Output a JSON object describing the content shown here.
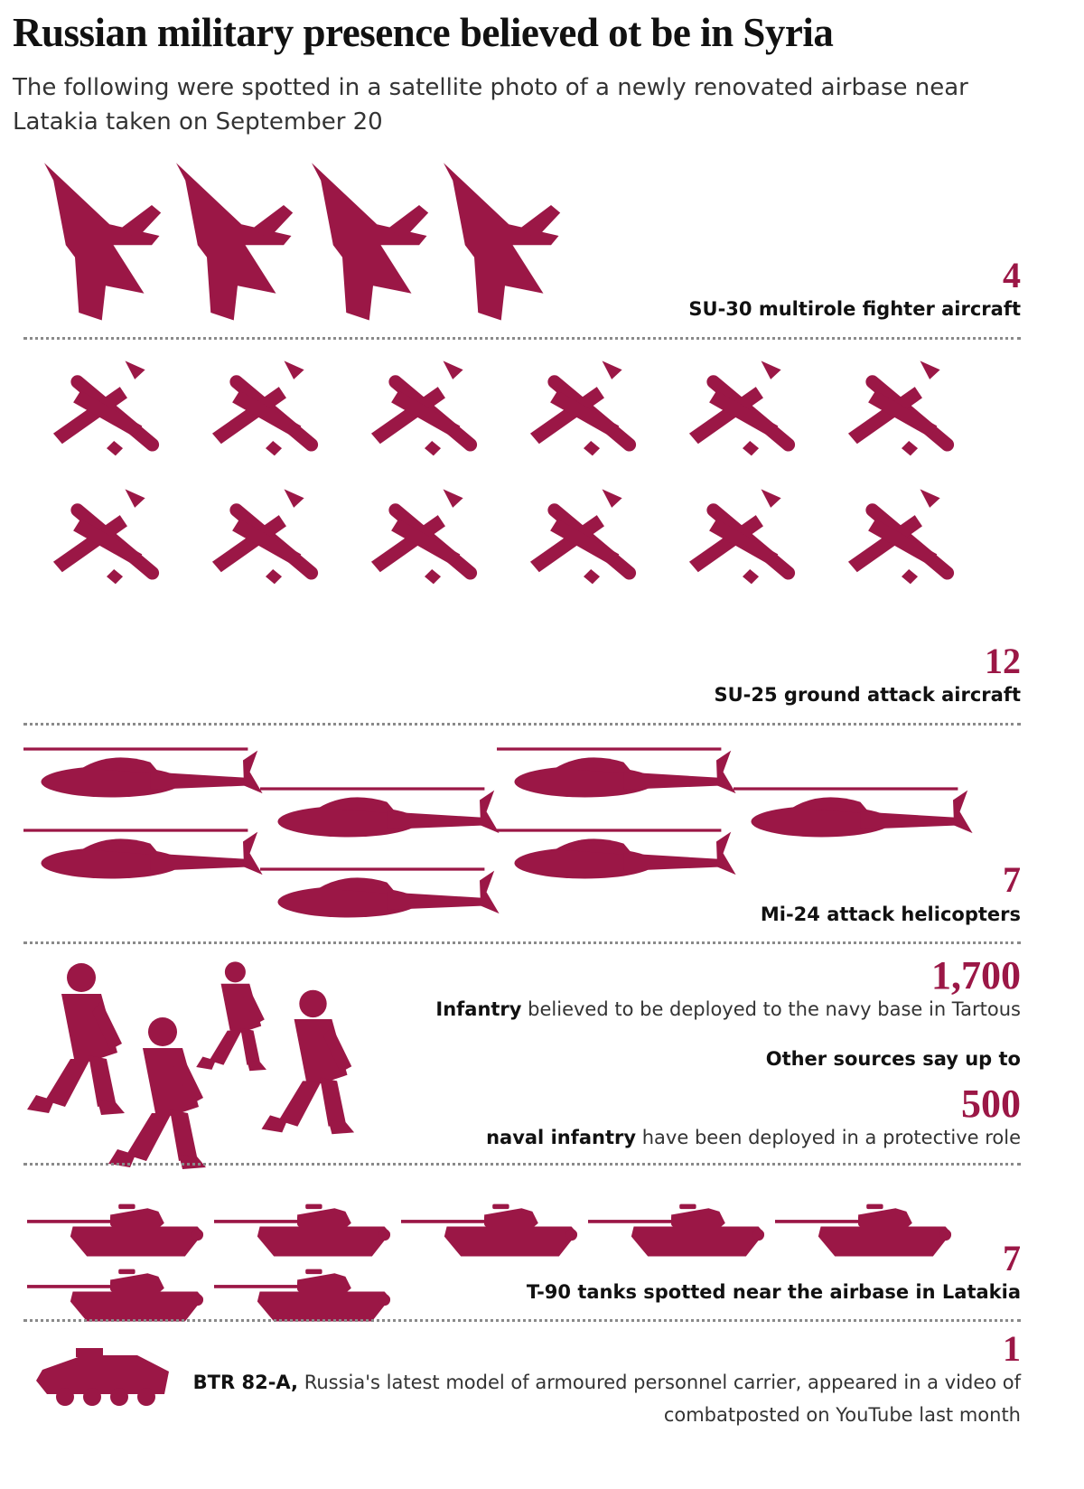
{
  "title": "Russian military presence believed ot be in Syria",
  "subtitle": "The following were spotted in a satellite photo of a newly renovated airbase near Latakia taken on September 20",
  "colors": {
    "accent": "#9b1746",
    "text": "#222222",
    "divider": "#8a8a8a"
  },
  "chart_data": {
    "type": "pictogram",
    "unit": "one icon = one unit",
    "series": [
      {
        "name": "SU-30 multirole fighter aircraft",
        "count_label": "4",
        "value": 4,
        "icon": "fighter-jet-icon",
        "label_bold": "SU-30 multirole fighter aircraft",
        "label_rest": ""
      },
      {
        "name": "SU-25 ground attack aircraft",
        "count_label": "12",
        "value": 12,
        "icon": "attack-aircraft-icon",
        "label_bold": "SU-25 ground attack aircraft",
        "label_rest": ""
      },
      {
        "name": "Mi-24 attack helicopters",
        "count_label": "7",
        "value": 7,
        "icon": "helicopter-icon",
        "label_bold": "Mi-24 attack helicopters",
        "label_rest": ""
      },
      {
        "name": "Infantry",
        "count_label": "1,700",
        "value": 1700,
        "icon": "soldier-icon",
        "label_bold": "Infantry",
        "label_rest": " believed to be deployed to the navy base in Tartous"
      },
      {
        "name": "naval infantry",
        "count_label": "500",
        "value": 500,
        "intro": "Other sources say up to",
        "label_bold": "naval infantry",
        "label_rest": " have been deployed in a protective role"
      },
      {
        "name": "T-90 tanks",
        "count_label": "7",
        "value": 7,
        "icon": "tank-icon",
        "label_bold": "T-90 tanks spotted near the airbase in Latakia",
        "label_rest": ""
      },
      {
        "name": "BTR 82-A",
        "count_label": "1",
        "value": 1,
        "icon": "apc-icon",
        "label_bold": "BTR 82-A,",
        "label_rest": " Russia's latest model of armoured personnel carrier, appeared in a video of combatposted on YouTube last month"
      }
    ]
  }
}
